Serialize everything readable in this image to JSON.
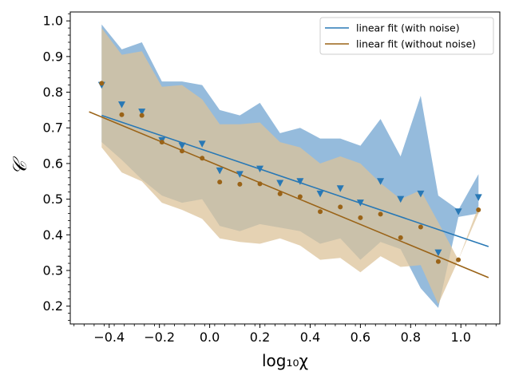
{
  "chart_data": {
    "type": "scatter",
    "xlabel": "log₁₀χ",
    "ylabel": "𝒞",
    "xlim": [
      -0.555,
      1.155
    ],
    "ylim": [
      0.15,
      1.025
    ],
    "xticks": [
      "−0.4",
      "−0.2",
      "0.0",
      "0.2",
      "0.4",
      "0.6",
      "0.8",
      "1.0"
    ],
    "xtick_values": [
      -0.4,
      -0.2,
      0.0,
      0.2,
      0.4,
      0.6,
      0.8,
      1.0
    ],
    "yticks": [
      "0.2",
      "0.3",
      "0.4",
      "0.5",
      "0.6",
      "0.7",
      "0.8",
      "0.9",
      "1.0"
    ],
    "ytick_values": [
      0.2,
      0.3,
      0.4,
      0.5,
      0.6,
      0.7,
      0.8,
      0.9,
      1.0
    ],
    "legend": {
      "placement": "top-right",
      "entries": [
        "linear fit (with noise)",
        "linear fit (without noise)"
      ]
    },
    "x": [
      -0.43,
      -0.35,
      -0.27,
      -0.19,
      -0.11,
      -0.03,
      0.04,
      0.12,
      0.2,
      0.28,
      0.36,
      0.44,
      0.52,
      0.6,
      0.68,
      0.76,
      0.84,
      0.91,
      0.99,
      1.07
    ],
    "series": [
      {
        "name": "linear fit (with noise)",
        "color": "#2878b5",
        "band_color": "#8ab4d8",
        "marker": "triangle-down",
        "values": [
          0.82,
          0.765,
          0.745,
          0.665,
          0.65,
          0.655,
          0.58,
          0.57,
          0.585,
          0.545,
          0.55,
          0.515,
          0.53,
          0.49,
          0.55,
          0.5,
          0.515,
          0.35,
          0.465,
          0.505
        ],
        "band_upper": [
          0.99,
          0.92,
          0.94,
          0.83,
          0.83,
          0.82,
          0.75,
          0.735,
          0.77,
          0.685,
          0.7,
          0.67,
          0.67,
          0.65,
          0.725,
          0.62,
          0.79,
          0.51,
          0.47,
          0.57
        ],
        "band_lower": [
          0.66,
          0.61,
          0.555,
          0.51,
          0.49,
          0.5,
          0.425,
          0.41,
          0.43,
          0.42,
          0.41,
          0.375,
          0.39,
          0.33,
          0.38,
          0.36,
          0.25,
          0.195,
          0.45,
          0.46
        ],
        "fit": {
          "x0": -0.43,
          "y0": 0.735,
          "x1": 1.11,
          "y1": 0.367
        }
      },
      {
        "name": "linear fit (without noise)",
        "color": "#9a6317",
        "band_color": "#dcc39a",
        "marker": "circle",
        "values": [
          0.825,
          0.737,
          0.735,
          0.66,
          0.635,
          0.615,
          0.548,
          0.542,
          0.543,
          0.515,
          0.507,
          0.465,
          0.478,
          0.448,
          0.458,
          0.392,
          0.422,
          0.325,
          0.33,
          0.47
        ],
        "band_upper": [
          0.98,
          0.905,
          0.915,
          0.815,
          0.82,
          0.78,
          0.71,
          0.71,
          0.715,
          0.66,
          0.645,
          0.6,
          0.62,
          0.6,
          0.545,
          0.5,
          0.525,
          0.435,
          0.33,
          0.48
        ],
        "band_lower": [
          0.645,
          0.575,
          0.55,
          0.49,
          0.47,
          0.445,
          0.39,
          0.38,
          0.375,
          0.39,
          0.37,
          0.33,
          0.335,
          0.295,
          0.34,
          0.31,
          0.315,
          0.205,
          0.33,
          0.46
        ],
        "fit": {
          "x0": -0.48,
          "y0": 0.745,
          "x1": 1.11,
          "y1": 0.28
        }
      }
    ]
  }
}
